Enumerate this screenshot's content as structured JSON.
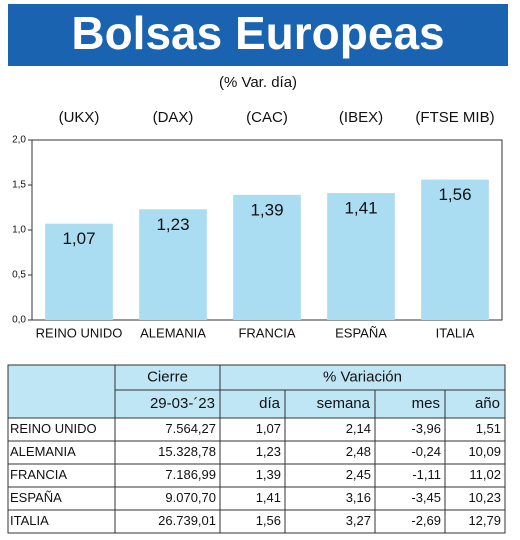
{
  "chart_data": {
    "type": "bar",
    "title": "Bolsas Europeas",
    "subtitle": "(% Var. día)",
    "categories": [
      "REINO UNIDO",
      "ALEMANIA",
      "FRANCIA",
      "ESPAÑA",
      "ITALIA"
    ],
    "index_labels": [
      "(UKX)",
      "(DAX)",
      "(CAC)",
      "(IBEX)",
      "(FTSE MIB)"
    ],
    "values": [
      1.07,
      1.23,
      1.39,
      1.41,
      1.56
    ],
    "value_labels": [
      "1,07",
      "1,23",
      "1,39",
      "1,41",
      "1,56"
    ],
    "color": "#aadcf2",
    "ylim": [
      0,
      2
    ],
    "yticks": [
      {
        "value": 0,
        "label": "0,0"
      },
      {
        "value": 0.5,
        "label": "0,5"
      },
      {
        "value": 1,
        "label": "1,0"
      },
      {
        "value": 1.5,
        "label": "1,5"
      },
      {
        "value": 2,
        "label": "2,0"
      }
    ]
  },
  "table": {
    "header": [
      "Cierre",
      "% Variación"
    ],
    "subheader": [
      "29-03-´23",
      "día",
      "semana",
      "mes",
      "año"
    ],
    "rows": [
      [
        "REINO UNIDO",
        "7.564,27",
        "1,07",
        "2,14",
        "-3,96",
        "1,51"
      ],
      [
        "ALEMANIA",
        "15.328,78",
        "1,23",
        "2,48",
        "-0,24",
        "10,09"
      ],
      [
        "FRANCIA",
        "7.186,99",
        "1,39",
        "2,45",
        "-1,11",
        "11,02"
      ],
      [
        "ESPAÑA",
        "9.070,70",
        "1,41",
        "3,16",
        "-3,45",
        "10,23"
      ],
      [
        "ITALIA",
        "26.739,01",
        "1,56",
        "3,27",
        "-2,69",
        "12,79"
      ]
    ]
  }
}
